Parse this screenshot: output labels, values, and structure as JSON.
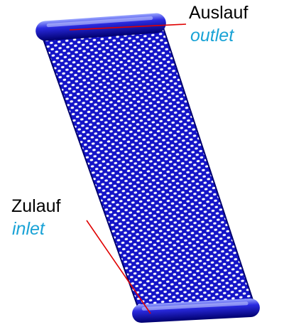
{
  "labels": {
    "outlet_de": "Auslauf",
    "outlet_en": "outlet",
    "inlet_de": "Zulauf",
    "inlet_en": "inlet"
  },
  "colors": {
    "plate": "#1414c8",
    "plate_dark": "#00006e",
    "header_pipe": "#2a2ae0",
    "header_highlight": "#9aa6ff",
    "leader_line": "#e00000",
    "english_text": "#1aa3d6",
    "german_text": "#000000",
    "background": "#ffffff"
  },
  "diagram": {
    "components": [
      "heat-exchanger-plate",
      "outlet-header-pipe",
      "inlet-header-pipe",
      "dimple-pattern"
    ],
    "leader_lines": 2
  }
}
